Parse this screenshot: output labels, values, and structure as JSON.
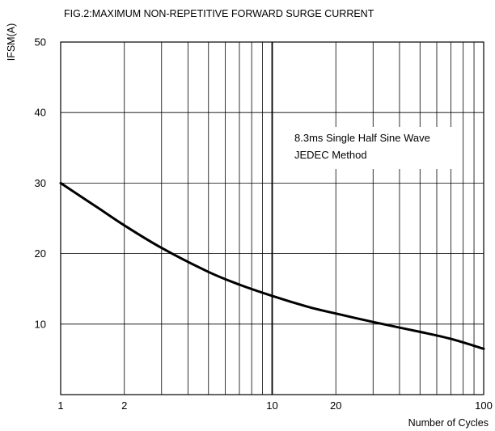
{
  "chart_data": {
    "type": "line",
    "title": "FIG.2:MAXIMUM NON-REPETITIVE FORWARD SURGE CURRENT",
    "xlabel": "Number of Cycles",
    "ylabel": "IFSM(A)",
    "x_scale": "log",
    "xlim": [
      1,
      100
    ],
    "ylim": [
      0,
      50
    ],
    "x_ticks": [
      1,
      2,
      10,
      20,
      100
    ],
    "x_ticks_labels": [
      "1",
      "2",
      "10",
      "20",
      "100"
    ],
    "x_gridlines": [
      1,
      2,
      3,
      4,
      5,
      6,
      7,
      8,
      9,
      10,
      20,
      30,
      40,
      50,
      60,
      70,
      80,
      90,
      100
    ],
    "y_ticks": [
      10,
      20,
      30,
      40,
      50
    ],
    "y_ticks_labels": [
      "10",
      "20",
      "30",
      "40",
      "50"
    ],
    "grid": true,
    "annotation": [
      "8.3ms Single Half Sine Wave",
      "JEDEC Method"
    ],
    "series": [
      {
        "x": [
          1,
          1.5,
          2,
          3,
          5,
          7,
          10,
          15,
          20,
          30,
          50,
          70,
          100
        ],
        "y": [
          30,
          26.5,
          24.0,
          20.8,
          17.4,
          15.6,
          14.0,
          12.4,
          11.5,
          10.3,
          8.9,
          7.9,
          6.5
        ]
      }
    ]
  }
}
